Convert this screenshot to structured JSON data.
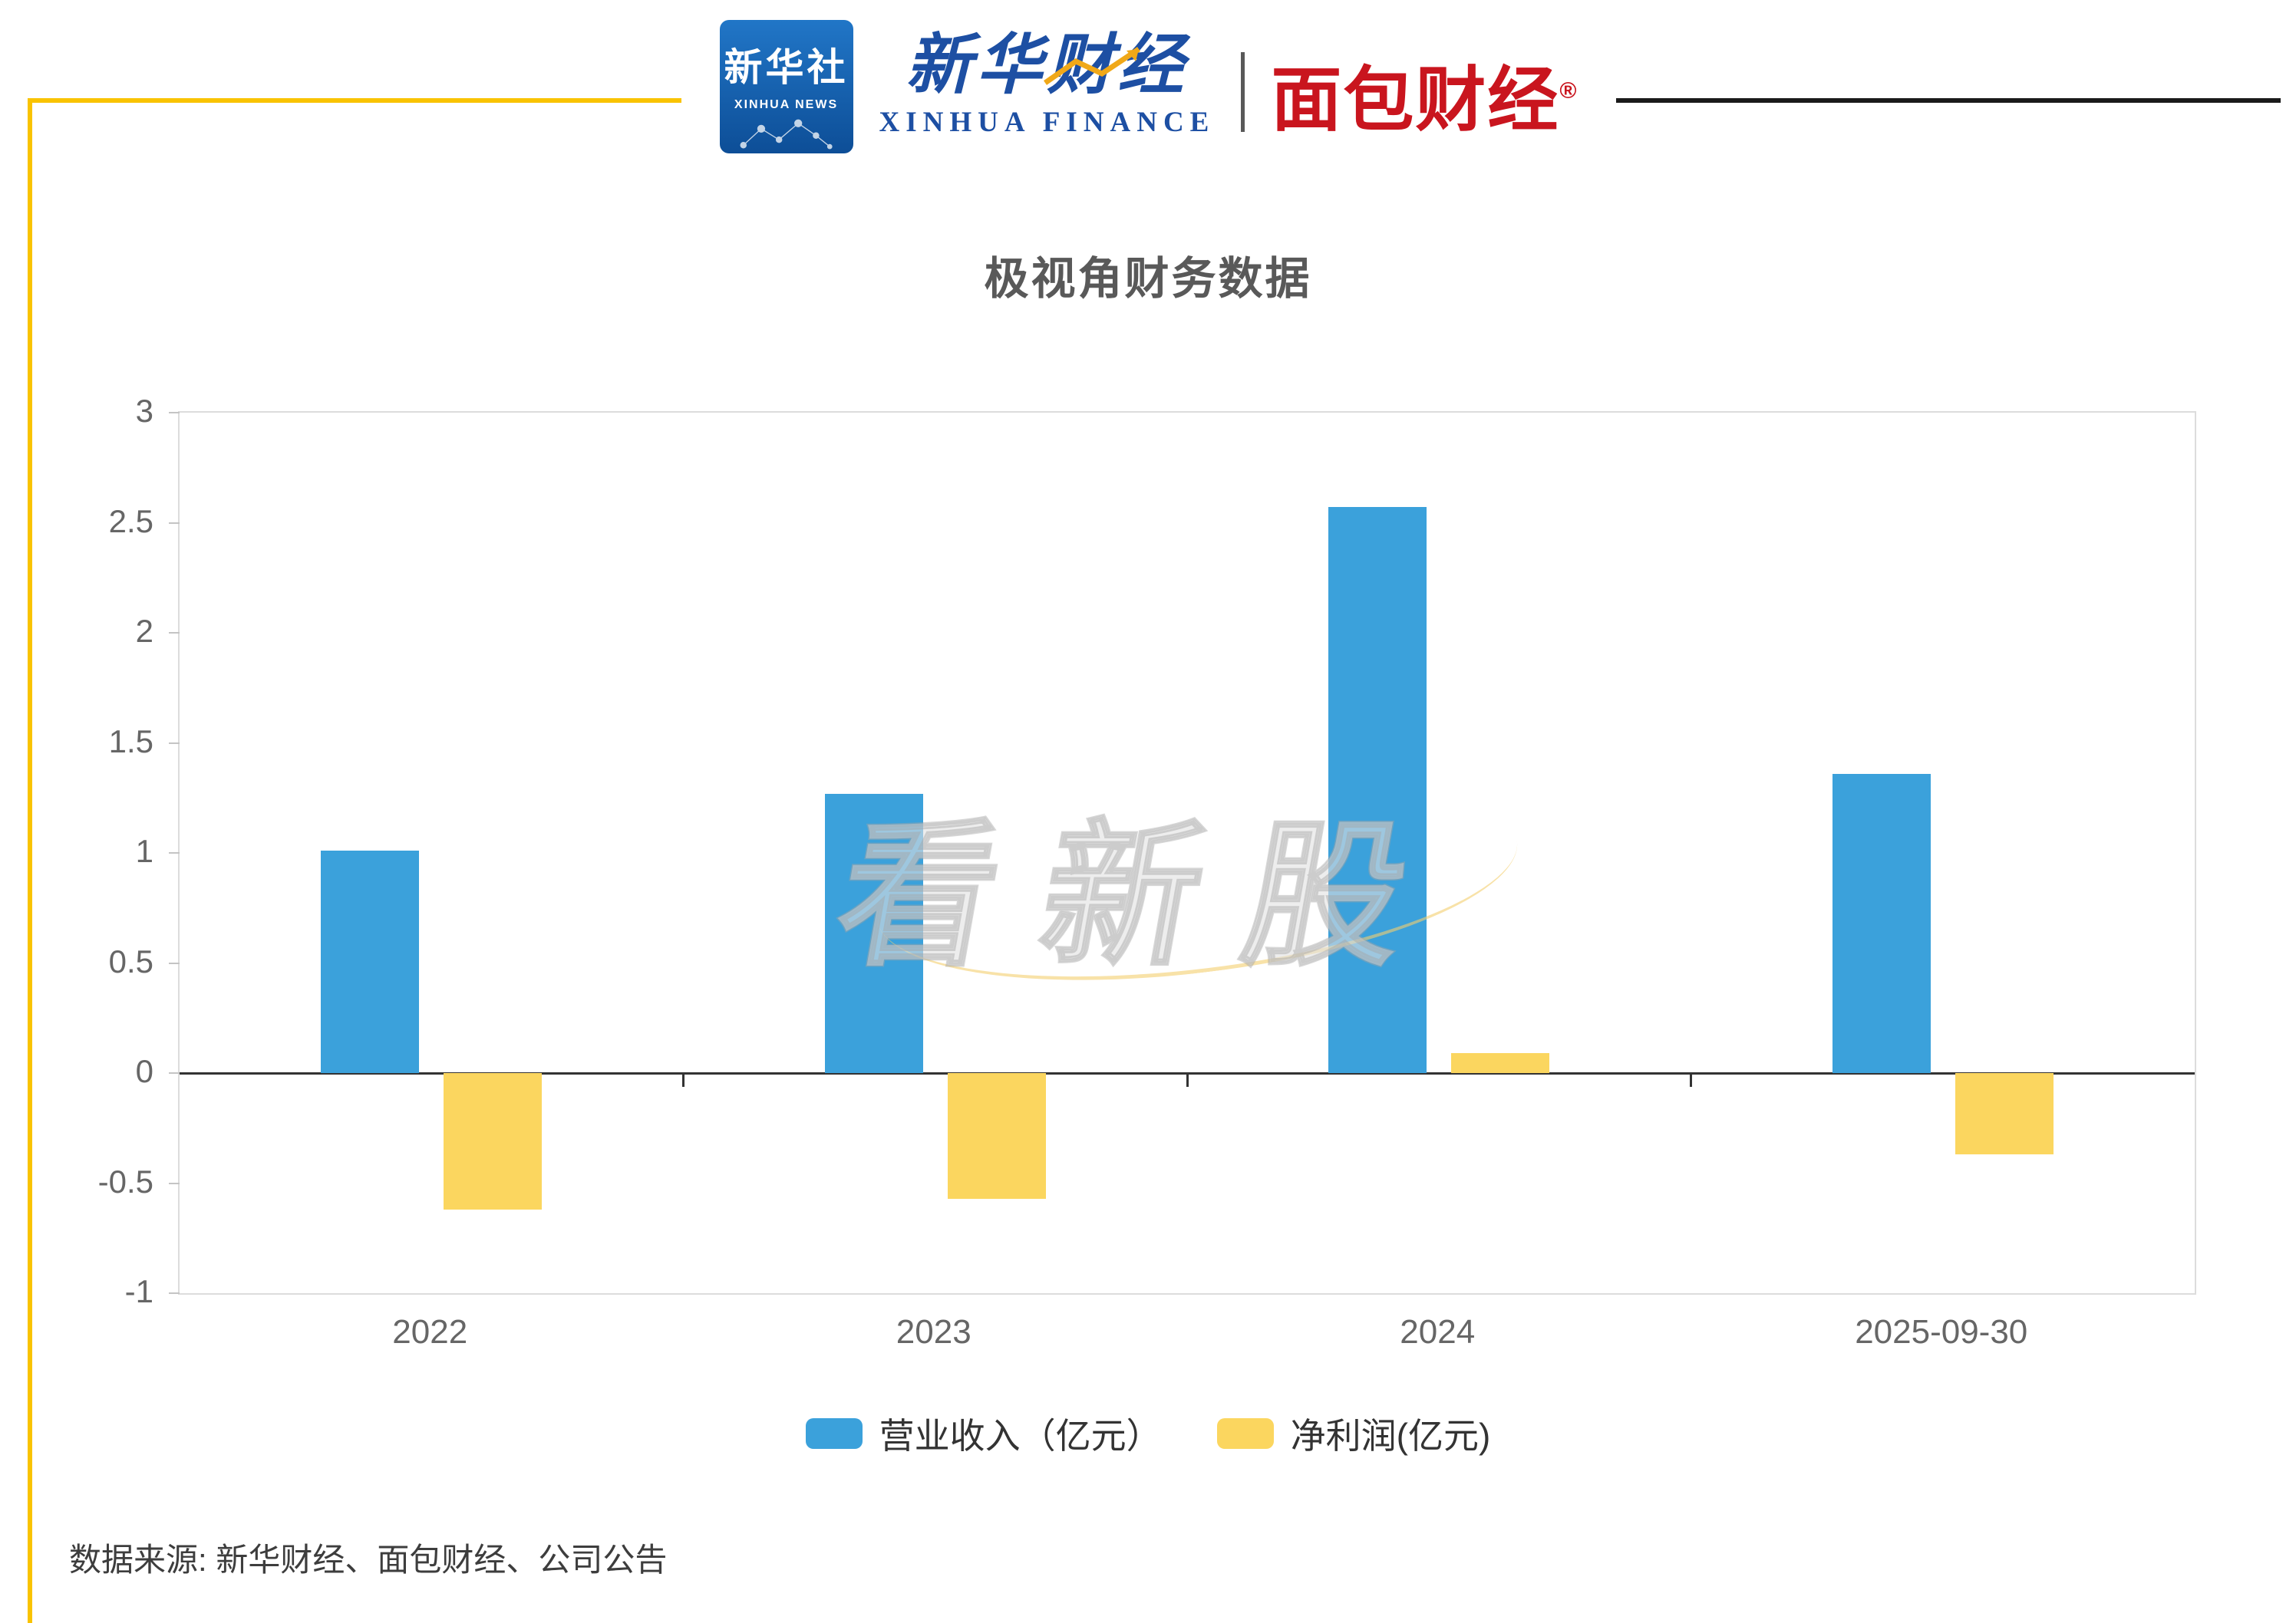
{
  "header": {
    "xinhua_news": {
      "cn": "新华社",
      "en": "XINHUA NEWS"
    },
    "xinhua_finance": {
      "cn": "新华财经",
      "en": "XINHUA FINANCE"
    },
    "mianbao_finance": {
      "cn": "面包财经",
      "reg": "®"
    }
  },
  "chart_data": {
    "type": "bar",
    "title": "极视角财务数据",
    "categories": [
      "2022",
      "2023",
      "2024",
      "2025-09-30"
    ],
    "series": [
      {
        "name": "营业收入（亿元）",
        "color": "#3BA1DB",
        "values": [
          1.01,
          1.27,
          2.57,
          1.36
        ]
      },
      {
        "name": "净利润(亿元)",
        "color": "#FBD65F",
        "values": [
          -0.62,
          -0.57,
          0.09,
          -0.37
        ]
      }
    ],
    "ylim": [
      -1,
      3
    ],
    "yticks": [
      3,
      2.5,
      2,
      1.5,
      1,
      0.5,
      0,
      -0.5,
      -1
    ],
    "grid": false,
    "legend_position": "bottom",
    "xlabel": "",
    "ylabel": ""
  },
  "watermark": "看新股",
  "footer": {
    "source": "数据来源: 新华财经、面包财经、公司公告"
  },
  "colors": {
    "frame_yellow": "#F9C301",
    "frame_black": "#1A1A1A",
    "xinhua_blue": "#1D4FA3",
    "mianbao_red": "#C9151E",
    "axis_text": "#666666",
    "zero_line": "#333333"
  }
}
